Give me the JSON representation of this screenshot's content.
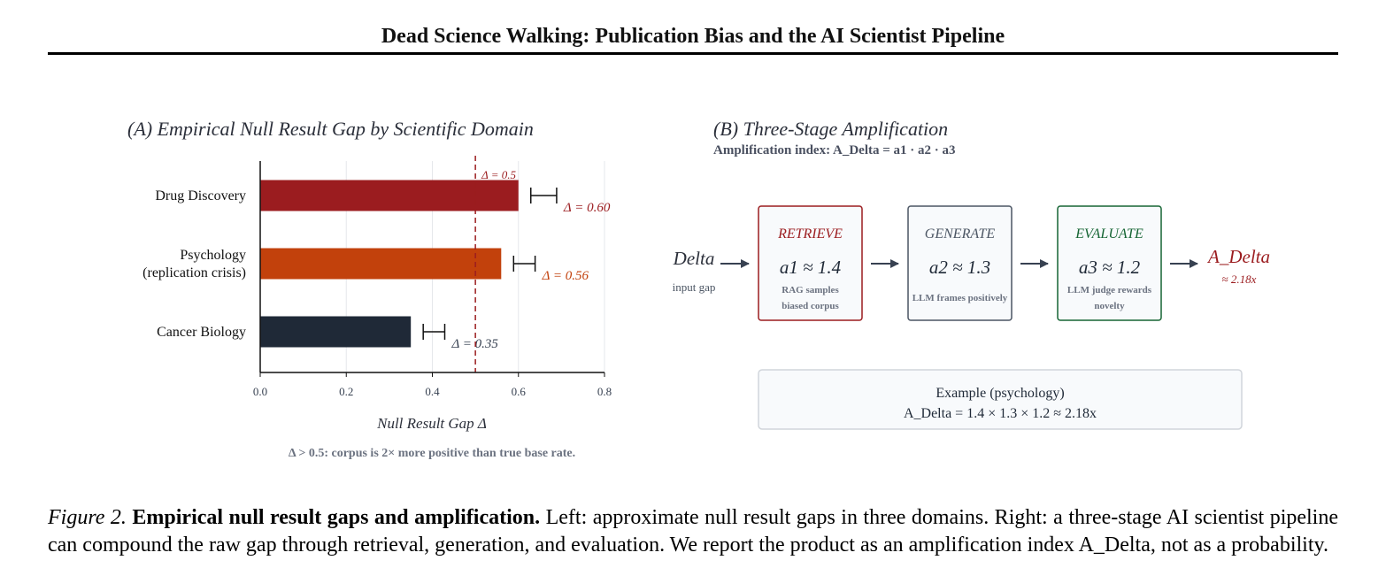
{
  "header": {
    "title": "Dead Science Walking: Publication Bias and the AI Scientist Pipeline"
  },
  "panel_a": {
    "title": "(A) Empirical Null Result Gap by Scientific Domain",
    "note": "Δ > 0.5: corpus is 2× more positive than true base rate."
  },
  "chart_data": {
    "type": "bar",
    "orientation": "horizontal",
    "categories": [
      "Drug Discovery",
      "Psychology\n(replication crisis)",
      "Cancer Biology"
    ],
    "values": [
      0.6,
      0.56,
      0.35
    ],
    "value_labels": [
      "Δ = 0.60",
      "Δ = 0.56",
      "Δ = 0.35"
    ],
    "error_bar": [
      0.03,
      0.025,
      0.025
    ],
    "colors": [
      "#9b1c1f",
      "#c2410c",
      "#1f2937"
    ],
    "label_colors": [
      "#9b1c1f",
      "#c2410c",
      "#374151"
    ],
    "xlabel": "Null Result Gap Δ",
    "ylabel": "",
    "xlim": [
      0,
      0.8
    ],
    "xticks": [
      "0.0",
      "0.2",
      "0.4",
      "0.6",
      "0.8"
    ],
    "grid": true,
    "threshold": {
      "value": 0.5,
      "label": "Δ = 0.5",
      "color": "#9b1c1f"
    }
  },
  "panel_b": {
    "title": "(B) Three-Stage Amplification",
    "subtitle": "Amplification index: A_Delta = a1 · a2 · a3",
    "input_label": "Delta",
    "input_sub": "input gap",
    "output_label": "A_Delta",
    "output_sub": "≈ 2.18x",
    "stages": [
      {
        "name": "RETRIEVE",
        "formula": "a1 ≈ 1.4",
        "desc1": "RAG samples",
        "desc2": "biased corpus",
        "color": "#9b1c1f"
      },
      {
        "name": "GENERATE",
        "formula": "a2 ≈ 1.3",
        "desc1": "LLM frames positively",
        "desc2": "",
        "color": "#4b5563"
      },
      {
        "name": "EVALUATE",
        "formula": "a3 ≈ 1.2",
        "desc1": "LLM judge rewards",
        "desc2": "novelty",
        "color": "#166534"
      }
    ],
    "example_title": "Example (psychology)",
    "example_formula": "A_Delta = 1.4 × 1.3 × 1.2 ≈ 2.18x"
  },
  "caption": {
    "fig": "Figure 2.",
    "bold": "Empirical null result gaps and amplification.",
    "text": "Left: approximate null result gaps in three domains. Right: a three-stage AI scientist pipeline can compound the raw gap through retrieval, generation, and evaluation. We report the product as an amplification index A_Delta, not as a probability."
  }
}
